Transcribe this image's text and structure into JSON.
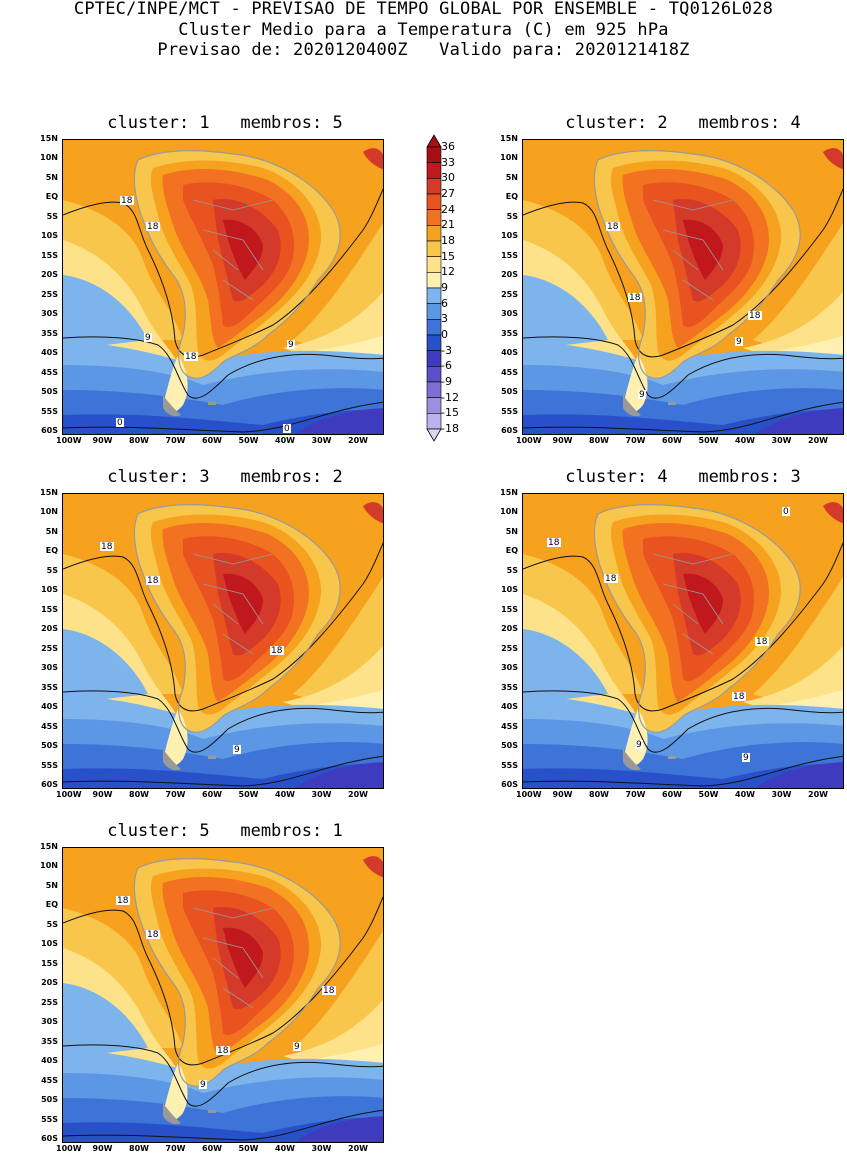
{
  "header": {
    "line1": "CPTEC/INPE/MCT - PREVISAO DE TEMPO GLOBAL POR ENSEMBLE - TQ0126L028",
    "line2": "Cluster Medio para a Temperatura (C) em 925 hPa",
    "line3": "Previsao de: 2020120400Z   Valido para: 2020121418Z"
  },
  "axes": {
    "lat_labels": [
      "15N",
      "10N",
      "5N",
      "EQ",
      "5S",
      "10S",
      "15S",
      "20S",
      "25S",
      "30S",
      "35S",
      "40S",
      "45S",
      "50S",
      "55S",
      "60S"
    ],
    "lon_labels": [
      "100W",
      "90W",
      "80W",
      "70W",
      "60W",
      "50W",
      "40W",
      "30W",
      "20W"
    ]
  },
  "colorbar": {
    "levels": [
      "36",
      "33",
      "30",
      "27",
      "24",
      "21",
      "18",
      "15",
      "12",
      "9",
      "6",
      "3",
      "0",
      "-3",
      "-6",
      "-9",
      "-12",
      "-15",
      "-18"
    ],
    "colors": [
      "#a50f15",
      "#c0181c",
      "#d43a2a",
      "#e8531f",
      "#f27221",
      "#f6a21f",
      "#f9c64c",
      "#fde28a",
      "#fdf0b0",
      "#7db4ec",
      "#5b97e4",
      "#3e73d8",
      "#2850c8",
      "#3f3bbf",
      "#5b4ec8",
      "#7d6fd5",
      "#9b8fe0",
      "#bcb2ec",
      "#ddd6f5"
    ]
  },
  "panels": [
    {
      "title": "cluster: 1   membros: 5",
      "labels": [
        "18",
        "18",
        "9",
        "18",
        "9",
        "0",
        "0"
      ]
    },
    {
      "title": "cluster: 2   membros: 4",
      "labels": [
        "18",
        "18",
        "18",
        "9",
        "9"
      ]
    },
    {
      "title": "cluster: 3   membros: 2",
      "labels": [
        "18",
        "18",
        "18",
        "9"
      ]
    },
    {
      "title": "cluster: 4   membros: 3",
      "labels": [
        "18",
        "18",
        "18",
        "18",
        "9",
        "9",
        "0"
      ]
    },
    {
      "title": "cluster: 5   membros: 1",
      "labels": [
        "18",
        "18",
        "18",
        "18",
        "9",
        "9"
      ]
    }
  ]
}
